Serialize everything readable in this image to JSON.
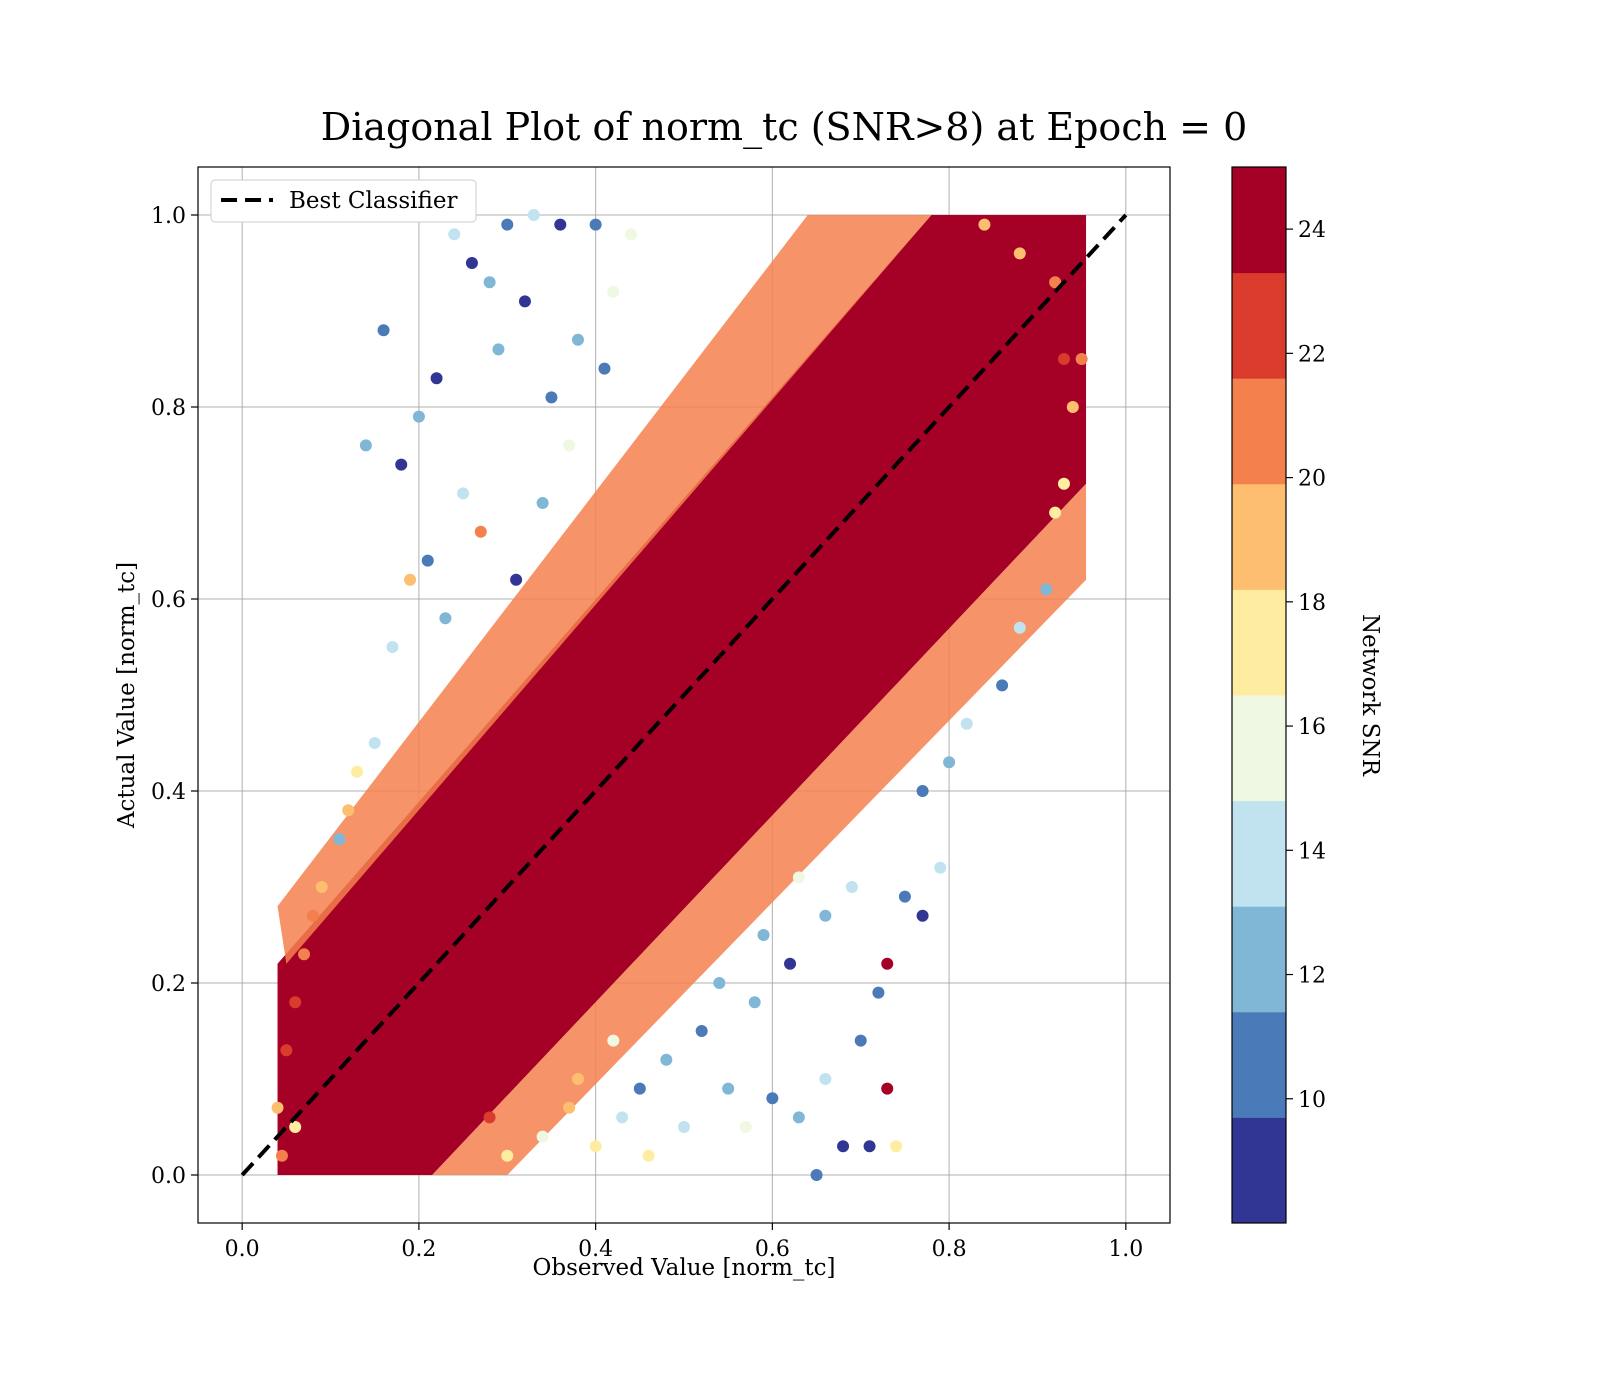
{
  "chart_data": {
    "type": "scatter",
    "title": "Diagonal Plot of norm_tc (SNR>8) at Epoch = 0",
    "xlabel": "Observed Value [norm_tc]",
    "ylabel": "Actual Value [norm_tc]",
    "xlim": [
      -0.05,
      1.05
    ],
    "ylim": [
      -0.05,
      1.05
    ],
    "xticks": [
      0.0,
      0.2,
      0.4,
      0.6,
      0.8,
      1.0
    ],
    "xtick_labels": [
      "0.0",
      "0.2",
      "0.4",
      "0.6",
      "0.8",
      "1.0"
    ],
    "yticks": [
      0.0,
      0.2,
      0.4,
      0.6,
      0.8,
      1.0
    ],
    "ytick_labels": [
      "0.0",
      "0.2",
      "0.4",
      "0.6",
      "0.8",
      "1.0"
    ],
    "grid": true,
    "legend": {
      "placement": "top-left",
      "entries": [
        {
          "label": "Best Classifier",
          "style": "dashed",
          "color": "#000000"
        }
      ]
    },
    "reference_line": {
      "name": "Best Classifier",
      "x": [
        0.0,
        1.0
      ],
      "y": [
        0.0,
        1.0
      ]
    },
    "colorbar": {
      "label": "Network SNR",
      "range": [
        8,
        25
      ],
      "ticks": [
        10,
        12,
        14,
        16,
        18,
        20,
        22,
        24
      ],
      "tick_labels": [
        "10",
        "12",
        "14",
        "16",
        "18",
        "20",
        "22",
        "24"
      ],
      "bins": [
        {
          "from": 8.0,
          "to": 9.7,
          "color": "#313695"
        },
        {
          "from": 9.7,
          "to": 11.4,
          "color": "#4a7ab7"
        },
        {
          "from": 11.4,
          "to": 13.1,
          "color": "#80b6d6"
        },
        {
          "from": 13.1,
          "to": 14.8,
          "color": "#c0e3ef"
        },
        {
          "from": 14.8,
          "to": 16.5,
          "color": "#eef8e2"
        },
        {
          "from": 16.5,
          "to": 18.2,
          "color": "#feeda1"
        },
        {
          "from": 18.2,
          "to": 19.9,
          "color": "#fdbf6f"
        },
        {
          "from": 19.9,
          "to": 21.6,
          "color": "#f4804d"
        },
        {
          "from": 21.6,
          "to": 23.3,
          "color": "#db3b2c"
        },
        {
          "from": 23.3,
          "to": 25.0,
          "color": "#a50026"
        }
      ]
    },
    "points": [
      [
        0.16,
        0.88,
        10.5
      ],
      [
        0.14,
        0.76,
        12.3
      ],
      [
        0.18,
        0.74,
        9.1
      ],
      [
        0.24,
        0.98,
        13.5
      ],
      [
        0.26,
        0.95,
        9.0
      ],
      [
        0.3,
        0.99,
        10.2
      ],
      [
        0.33,
        1.0,
        13.8
      ],
      [
        0.36,
        0.99,
        9.4
      ],
      [
        0.4,
        0.99,
        11.2
      ],
      [
        0.44,
        0.98,
        15.0
      ],
      [
        0.28,
        0.93,
        11.9
      ],
      [
        0.32,
        0.91,
        9.6
      ],
      [
        0.29,
        0.86,
        12.8
      ],
      [
        0.22,
        0.83,
        9.2
      ],
      [
        0.2,
        0.79,
        13.0
      ],
      [
        0.25,
        0.71,
        14.1
      ],
      [
        0.27,
        0.67,
        20.1
      ],
      [
        0.21,
        0.64,
        10.8
      ],
      [
        0.19,
        0.62,
        18.5
      ],
      [
        0.17,
        0.55,
        14.6
      ],
      [
        0.23,
        0.58,
        12.2
      ],
      [
        0.35,
        0.81,
        9.8
      ],
      [
        0.38,
        0.87,
        12.6
      ],
      [
        0.42,
        0.92,
        14.9
      ],
      [
        0.41,
        0.84,
        10.4
      ],
      [
        0.37,
        0.76,
        16.3
      ],
      [
        0.34,
        0.7,
        11.7
      ],
      [
        0.31,
        0.62,
        9.3
      ],
      [
        0.15,
        0.45,
        13.4
      ],
      [
        0.13,
        0.42,
        17.9
      ],
      [
        0.12,
        0.38,
        19.6
      ],
      [
        0.11,
        0.35,
        12.1
      ],
      [
        0.09,
        0.3,
        18.7
      ],
      [
        0.08,
        0.27,
        21.0
      ],
      [
        0.07,
        0.23,
        20.4
      ],
      [
        0.06,
        0.18,
        22.5
      ],
      [
        0.05,
        0.13,
        21.8
      ],
      [
        0.04,
        0.07,
        19.2
      ],
      [
        0.045,
        0.02,
        20.8
      ],
      [
        0.06,
        0.05,
        17.5
      ],
      [
        0.84,
        0.99,
        19.0
      ],
      [
        0.88,
        0.96,
        18.3
      ],
      [
        0.92,
        0.93,
        20.2
      ],
      [
        0.93,
        0.85,
        22.4
      ],
      [
        0.94,
        0.8,
        19.5
      ],
      [
        0.95,
        0.85,
        20.6
      ],
      [
        0.93,
        0.72,
        17.6
      ],
      [
        0.92,
        0.69,
        16.8
      ],
      [
        0.91,
        0.61,
        12.9
      ],
      [
        0.88,
        0.57,
        14.4
      ],
      [
        0.86,
        0.51,
        10.1
      ],
      [
        0.82,
        0.47,
        13.7
      ],
      [
        0.8,
        0.43,
        12.5
      ],
      [
        0.77,
        0.4,
        11.0
      ],
      [
        0.79,
        0.32,
        14.2
      ],
      [
        0.75,
        0.29,
        10.7
      ],
      [
        0.77,
        0.27,
        9.2
      ],
      [
        0.73,
        0.22,
        23.8
      ],
      [
        0.72,
        0.19,
        11.3
      ],
      [
        0.7,
        0.14,
        10.9
      ],
      [
        0.73,
        0.09,
        24.0
      ],
      [
        0.74,
        0.03,
        17.4
      ],
      [
        0.71,
        0.03,
        9.5
      ],
      [
        0.65,
        0.0,
        10.4
      ],
      [
        0.68,
        0.03,
        9.0
      ],
      [
        0.63,
        0.06,
        12.4
      ],
      [
        0.66,
        0.1,
        13.6
      ],
      [
        0.6,
        0.08,
        9.9
      ],
      [
        0.57,
        0.05,
        15.8
      ],
      [
        0.55,
        0.09,
        12.0
      ],
      [
        0.5,
        0.05,
        14.5
      ],
      [
        0.46,
        0.02,
        17.0
      ],
      [
        0.43,
        0.06,
        13.9
      ],
      [
        0.4,
        0.03,
        16.7
      ],
      [
        0.37,
        0.07,
        18.6
      ],
      [
        0.52,
        0.15,
        10.3
      ],
      [
        0.58,
        0.18,
        12.7
      ],
      [
        0.62,
        0.22,
        9.4
      ],
      [
        0.66,
        0.27,
        11.5
      ],
      [
        0.69,
        0.3,
        14.0
      ],
      [
        0.63,
        0.31,
        16.2
      ],
      [
        0.59,
        0.25,
        13.1
      ],
      [
        0.54,
        0.2,
        11.8
      ],
      [
        0.48,
        0.12,
        12.9
      ],
      [
        0.45,
        0.09,
        10.6
      ],
      [
        0.42,
        0.14,
        15.4
      ],
      [
        0.38,
        0.1,
        19.8
      ],
      [
        0.34,
        0.04,
        15.9
      ],
      [
        0.3,
        0.02,
        17.2
      ],
      [
        0.28,
        0.06,
        22.3
      ]
    ],
    "dense_band": [
      {
        "x0": 0.04,
        "x1": 0.21,
        "y0": 0.0,
        "y1": 0.21,
        "snr": 24.5
      },
      {
        "x0": 0.62,
        "x1": 0.93,
        "y0": 0.62,
        "y1": 1.0,
        "snr": 24.5
      }
    ]
  }
}
